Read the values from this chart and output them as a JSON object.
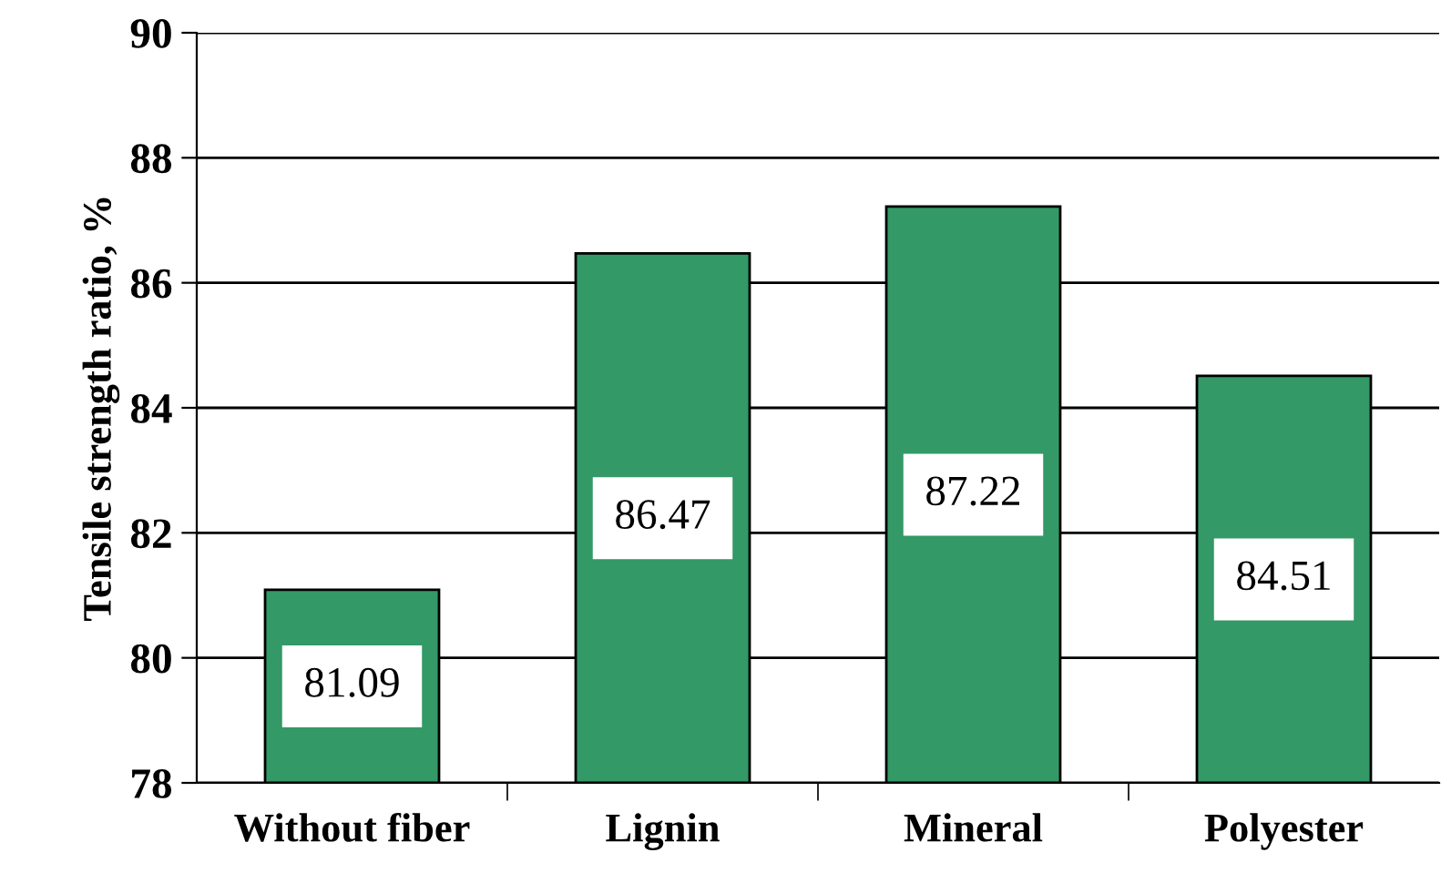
{
  "chart_data": {
    "type": "bar",
    "ylabel": "Tensile strength ratio, %",
    "categories": [
      "Without fiber",
      "Lignin",
      "Mineral",
      "Polyester"
    ],
    "values": [
      81.09,
      86.47,
      87.22,
      84.51
    ],
    "color": "#339966",
    "ylim": [
      78,
      90
    ],
    "yticks": [
      78,
      80,
      82,
      84,
      86,
      88,
      90
    ],
    "grid": "y",
    "data_labels": true
  }
}
